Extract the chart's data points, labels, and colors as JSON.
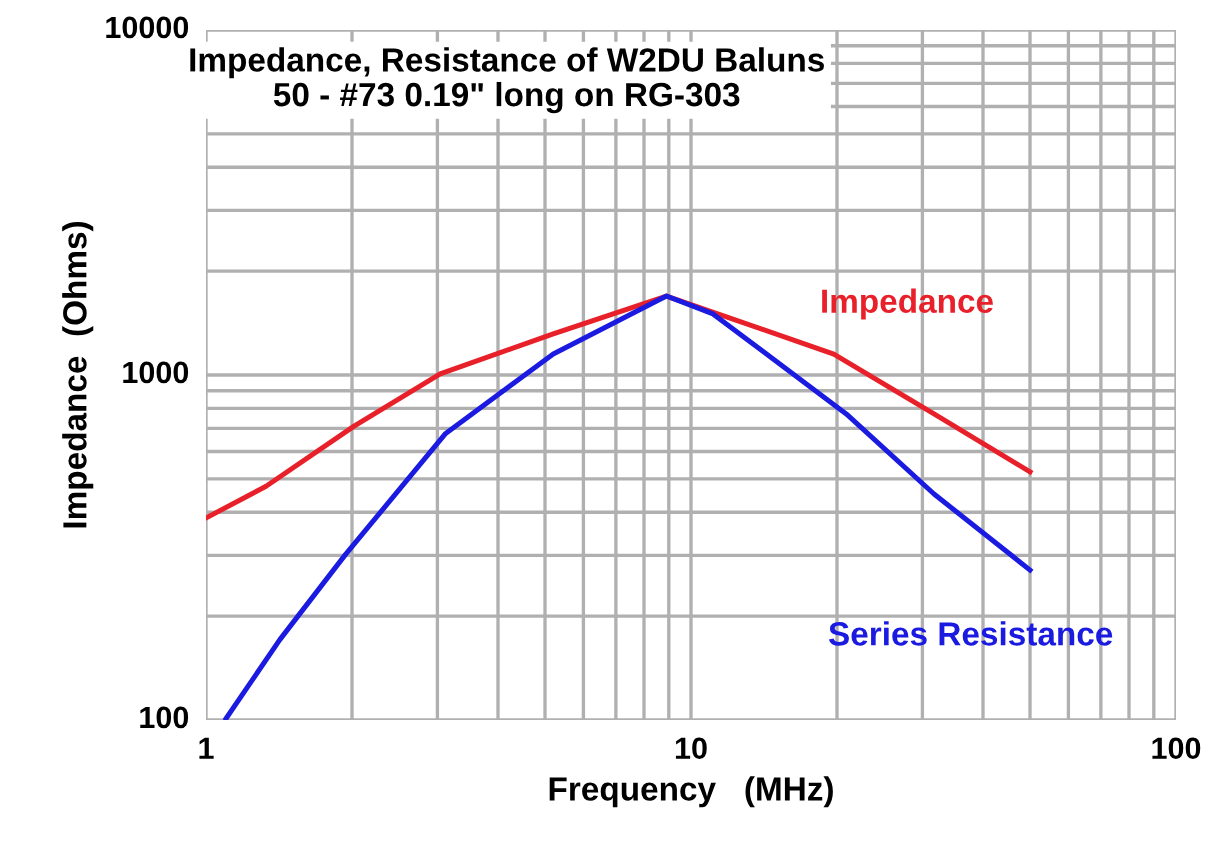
{
  "chart_data": {
    "type": "line",
    "title": "Impedance, Resistance of W2DU Baluns",
    "subtitle": "50 - #73 0.19\" long on RG-303",
    "xlabel": "Frequency   (MHz)",
    "ylabel": "Impedance  (Ohms)",
    "log": "xy",
    "xlim": [
      1,
      100
    ],
    "xticks": [
      1,
      10,
      100
    ],
    "ylim": [
      100,
      10000
    ],
    "yticks": [
      100,
      1000,
      10000
    ],
    "grid": true,
    "legend": false,
    "marker": "none",
    "line_style": "solid",
    "series": [
      {
        "name": "Impedance",
        "color": "#e8202a",
        "x": [
          1,
          1.33,
          2.02,
          3.04,
          5.2,
          8.9,
          19.7,
          31.7,
          50
        ],
        "values": [
          385,
          476,
          711,
          1007,
          1316,
          1694,
          1150,
          771,
          524
        ]
      },
      {
        "name": "Series Resistance",
        "color": "#1a1ae0",
        "x": [
          1.1,
          1.42,
          1.94,
          3.12,
          5.2,
          8.9,
          11.1,
          20.9,
          31.7,
          50
        ],
        "values": [
          101,
          171,
          302,
          677,
          1150,
          1694,
          1503,
          771,
          452,
          272
        ]
      }
    ]
  }
}
